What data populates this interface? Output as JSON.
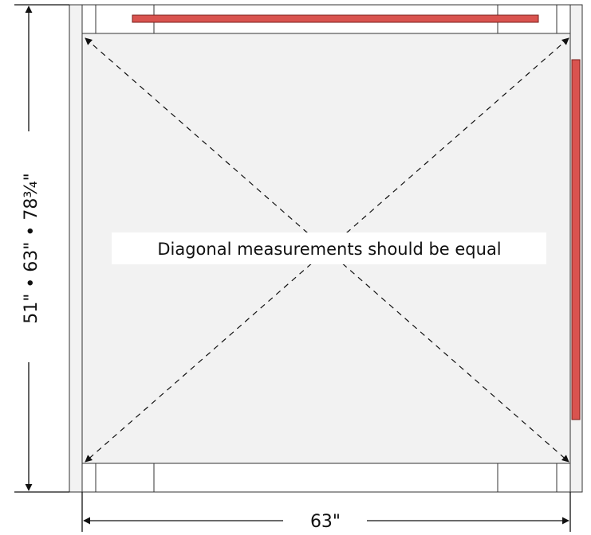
{
  "diagram": {
    "note": "Diagonal measurements should be equal",
    "width_label": "63\"",
    "height_label": "51\" • 63\" • 78¾\""
  },
  "colors": {
    "rail_fill": "#d9534f",
    "line": "#111111"
  }
}
